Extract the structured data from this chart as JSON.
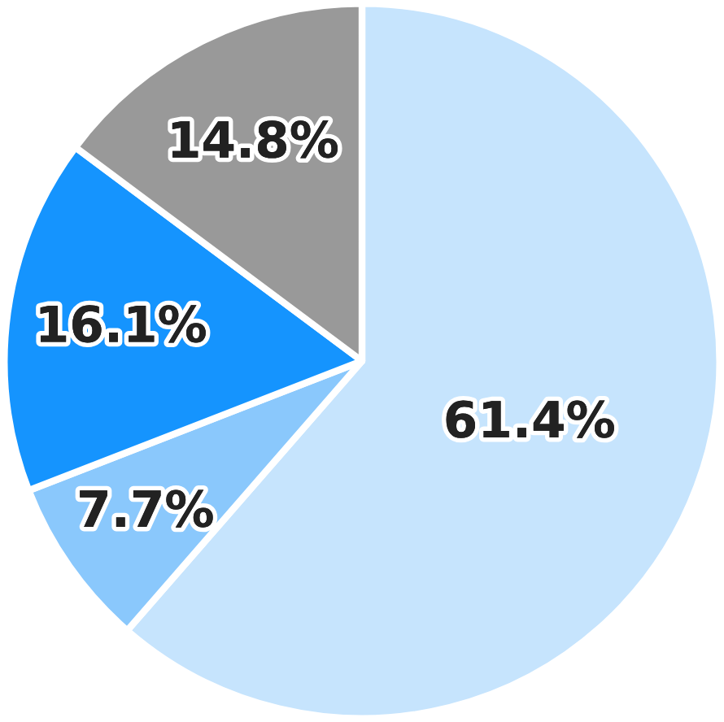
{
  "chart_data": {
    "type": "pie",
    "categories": [
      null,
      null,
      null,
      null
    ],
    "values": [
      61.4,
      7.7,
      16.1,
      14.8
    ],
    "colors": [
      "#c6e4fd",
      "#8ac8fc",
      "#1594fe",
      "#999999"
    ],
    "value_labels": [
      "61.4%",
      "7.7%",
      "16.1%",
      "14.8%"
    ]
  }
}
